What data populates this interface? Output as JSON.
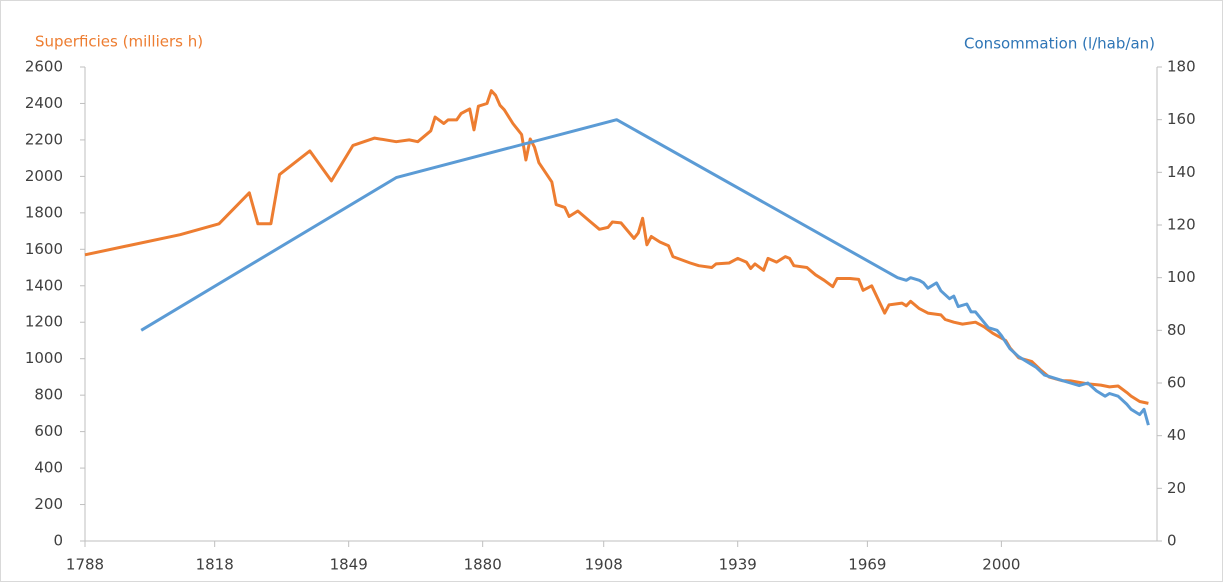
{
  "chart_data": {
    "type": "line",
    "ylabel": "Superficies (milliers h)",
    "y2label": "Consommation (l/hab/an)",
    "xlim": [
      1788,
      2036
    ],
    "xticks": [
      1788,
      1818,
      1849,
      1880,
      1908,
      1939,
      1969,
      2000
    ],
    "ylim": [
      0,
      2600
    ],
    "yticks": [
      0,
      200,
      400,
      600,
      800,
      1000,
      1200,
      1400,
      1600,
      1800,
      2000,
      2200,
      2400,
      2600
    ],
    "y2lim": [
      0,
      180
    ],
    "y2ticks": [
      0,
      20,
      40,
      60,
      80,
      100,
      120,
      140,
      160,
      180
    ],
    "grid": false,
    "series": [
      {
        "name": "Superficies (milliers h)",
        "color": "#ed7d31",
        "axis": "y",
        "x": [
          1788,
          1810,
          1819,
          1826,
          1828,
          1831,
          1833,
          1840,
          1845,
          1850,
          1855,
          1860,
          1863,
          1865,
          1868,
          1869,
          1871,
          1872,
          1874,
          1875,
          1877,
          1878,
          1879,
          1881,
          1882,
          1883,
          1884,
          1885,
          1887,
          1889,
          1890,
          1891,
          1892,
          1893,
          1896,
          1897,
          1899,
          1900,
          1902,
          1905,
          1907,
          1909,
          1910,
          1912,
          1915,
          1916,
          1917,
          1918,
          1919,
          1921,
          1923,
          1924,
          1928,
          1930,
          1933,
          1934,
          1937,
          1939,
          1941,
          1942,
          1943,
          1945,
          1946,
          1948,
          1950,
          1951,
          1952,
          1955,
          1957,
          1959,
          1961,
          1962,
          1965,
          1967,
          1968,
          1970,
          1973,
          1974,
          1977,
          1978,
          1979,
          1981,
          1983,
          1986,
          1987,
          1989,
          1991,
          1994,
          1996,
          1998,
          2001,
          2002,
          2004,
          2007,
          2009,
          2011,
          2014,
          2016,
          2018,
          2020,
          2023,
          2025,
          2027,
          2029,
          2030,
          2032,
          2034
        ],
        "values": [
          1570,
          1680,
          1740,
          1910,
          1740,
          1740,
          2010,
          2140,
          1975,
          2170,
          2210,
          2190,
          2200,
          2190,
          2250,
          2325,
          2290,
          2310,
          2310,
          2345,
          2370,
          2255,
          2385,
          2400,
          2470,
          2445,
          2390,
          2365,
          2290,
          2230,
          2090,
          2205,
          2160,
          2075,
          1970,
          1845,
          1830,
          1780,
          1810,
          1750,
          1710,
          1720,
          1750,
          1745,
          1660,
          1690,
          1770,
          1625,
          1670,
          1640,
          1620,
          1560,
          1525,
          1510,
          1500,
          1520,
          1525,
          1550,
          1530,
          1495,
          1520,
          1485,
          1550,
          1530,
          1560,
          1550,
          1510,
          1500,
          1460,
          1430,
          1395,
          1440,
          1440,
          1435,
          1375,
          1400,
          1250,
          1295,
          1305,
          1290,
          1315,
          1275,
          1250,
          1240,
          1215,
          1200,
          1190,
          1200,
          1175,
          1140,
          1100,
          1060,
          1005,
          985,
          940,
          900,
          880,
          878,
          870,
          862,
          855,
          845,
          850,
          815,
          795,
          765,
          755
        ]
      },
      {
        "name": "Consommation (l/hab/an)",
        "color": "#5b9bd5",
        "axis": "y2",
        "x": [
          1801,
          1860,
          1911,
          1976,
          1978,
          1979,
          1981,
          1982,
          1983,
          1985,
          1986,
          1988,
          1989,
          1990,
          1992,
          1993,
          1994,
          1995,
          1997,
          1999,
          2000,
          2002,
          2004,
          2008,
          2010,
          2014,
          2016,
          2018,
          2020,
          2022,
          2024,
          2025,
          2027,
          2029,
          2030,
          2032,
          2033,
          2034
        ],
        "values": [
          80,
          138,
          160,
          100,
          99,
          100,
          99,
          98,
          96,
          98,
          95,
          92,
          93,
          89,
          90,
          87,
          87,
          85,
          81,
          80,
          78,
          73,
          70,
          66,
          63,
          61,
          60,
          59,
          60,
          57,
          55,
          56,
          55,
          52,
          50,
          48,
          50,
          44
        ]
      }
    ]
  }
}
